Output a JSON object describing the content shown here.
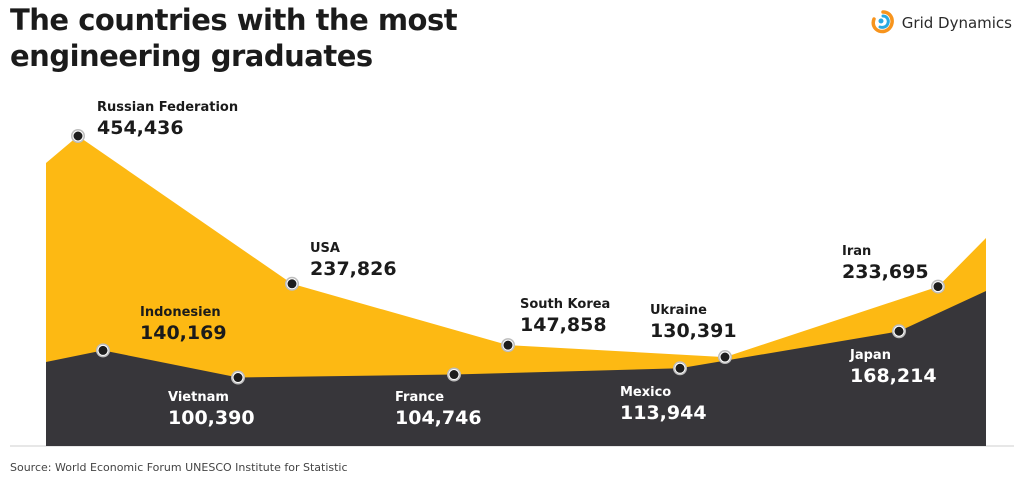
{
  "header": {
    "title": "The countries with the most engineering graduates"
  },
  "brand": {
    "name": "Grid Dynamics",
    "logo_icon": "grid-dynamics-logo-icon"
  },
  "footer": {
    "source": "Source: World Economic Forum UNESCO Institute for Statistic"
  },
  "colors": {
    "top_area": "#FDB913",
    "bottom_area": "#37363A",
    "marker": "#1E1E1E",
    "marker_ring": "#BDBDBD",
    "text_dark": "#1B1B1B",
    "text_light": "#FFFFFF"
  },
  "chart_data": {
    "type": "area",
    "title": "The countries with the most engineering graduates",
    "xlabel": "",
    "ylabel": "",
    "ylim": [
      0,
      480000
    ],
    "series": [
      {
        "name": "top",
        "color": "#FDB913",
        "points": [
          {
            "label": "Russian Federation",
            "value": 454436,
            "display": "454,436"
          },
          {
            "label": "USA",
            "value": 237826,
            "display": "237,826"
          },
          {
            "label": "South Korea",
            "value": 147858,
            "display": "147,858"
          },
          {
            "label": "Ukraine",
            "value": 130391,
            "display": "130,391"
          },
          {
            "label": "Iran",
            "value": 233695,
            "display": "233,695"
          }
        ]
      },
      {
        "name": "bottom",
        "color": "#37363A",
        "points": [
          {
            "label": "Indonesien",
            "value": 140169,
            "display": "140,169"
          },
          {
            "label": "Vietnam",
            "value": 100390,
            "display": "100,390"
          },
          {
            "label": "France",
            "value": 104746,
            "display": "104,746"
          },
          {
            "label": "Mexico",
            "value": 113944,
            "display": "113,944"
          },
          {
            "label": "Japan",
            "value": 168214,
            "display": "168,214"
          }
        ]
      }
    ]
  }
}
